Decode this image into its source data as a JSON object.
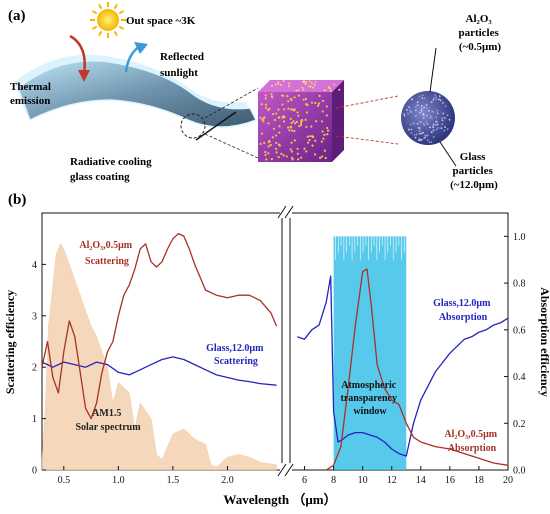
{
  "panel_a": {
    "label": "(a)",
    "out_space": "Out space ~3K",
    "thermal_emission": [
      "Thermal",
      "emission"
    ],
    "reflected_sunlight": [
      "Reflected",
      "sunlight"
    ],
    "coating": [
      "Radiative cooling",
      "glass coating"
    ],
    "al2o3": [
      "Al₂O₃",
      "particles",
      "(~0.5μm)"
    ],
    "glass": [
      "Glass",
      "particles",
      "(~12.0μm)"
    ],
    "colors": {
      "sun": "#f7c600",
      "film": "#7aa0b8",
      "cube": "#9a3aa8",
      "sphere": "#4a55a8",
      "thermal_arrow": "#c0392b",
      "reflect_arrow": "#3a9ad9"
    }
  },
  "panel_b": {
    "label": "(b)",
    "ylabel_left": "Scattering efficiency",
    "ylabel_right": "Absorption efficiency",
    "xlabel": "Wavelength （μm）",
    "annotations": {
      "al_scat": [
        "Al₂O₃,0.5μm",
        "Scattering"
      ],
      "glass_scat": [
        "Glass,12.0μm",
        "Scattering"
      ],
      "am15": [
        "AM1.5",
        "Solar spectrum"
      ],
      "atm": [
        "Atmospheric",
        "transparency",
        "window"
      ],
      "glass_abs": [
        "Glass,12.0μm",
        "Absorption"
      ],
      "al_abs": [
        "Al₂O₃,0.5μm",
        "Absorption"
      ]
    }
  },
  "chart_data": {
    "type": "line",
    "left": {
      "xlim": [
        0.3,
        2.5
      ],
      "ylim": [
        0,
        5
      ],
      "xticks": [
        "0.5",
        "1.0",
        "1.5",
        "2.0"
      ],
      "yticks": [
        "0",
        "1",
        "2",
        "3",
        "4"
      ],
      "series": [
        {
          "name": "Al2O3,0.5μm Scattering",
          "color": "#a83224",
          "x": [
            0.3,
            0.35,
            0.4,
            0.45,
            0.5,
            0.55,
            0.6,
            0.65,
            0.7,
            0.75,
            0.8,
            0.85,
            0.9,
            0.95,
            1.0,
            1.05,
            1.1,
            1.15,
            1.2,
            1.25,
            1.3,
            1.35,
            1.4,
            1.45,
            1.5,
            1.55,
            1.6,
            1.65,
            1.7,
            1.8,
            1.9,
            2.0,
            2.1,
            2.2,
            2.3,
            2.4,
            2.45
          ],
          "y": [
            2.0,
            2.5,
            1.8,
            1.5,
            2.3,
            2.9,
            2.6,
            1.9,
            1.2,
            1.0,
            1.3,
            1.9,
            2.3,
            2.5,
            3.0,
            3.4,
            3.6,
            3.9,
            4.3,
            4.4,
            4.05,
            3.95,
            4.05,
            4.3,
            4.5,
            4.6,
            4.55,
            4.3,
            4.0,
            3.5,
            3.4,
            3.35,
            3.4,
            3.4,
            3.3,
            3.05,
            2.8
          ]
        },
        {
          "name": "Glass,12.0μm Scattering",
          "color": "#2424c0",
          "x": [
            0.3,
            0.35,
            0.4,
            0.5,
            0.6,
            0.7,
            0.8,
            0.9,
            1.0,
            1.1,
            1.2,
            1.3,
            1.4,
            1.5,
            1.6,
            1.7,
            1.8,
            1.9,
            2.0,
            2.1,
            2.2,
            2.3,
            2.45
          ],
          "y": [
            2.1,
            2.05,
            2.0,
            2.1,
            2.05,
            2.0,
            2.1,
            2.05,
            1.9,
            1.85,
            1.95,
            2.05,
            2.15,
            2.2,
            2.15,
            2.05,
            1.95,
            1.85,
            1.8,
            1.75,
            1.72,
            1.68,
            1.65
          ]
        },
        {
          "name": "AM1.5 Solar spectrum",
          "color": "#f4d2b0",
          "x": [
            0.3,
            0.33,
            0.36,
            0.4,
            0.43,
            0.47,
            0.5,
            0.55,
            0.6,
            0.65,
            0.7,
            0.75,
            0.8,
            0.9,
            0.95,
            1.0,
            1.1,
            1.15,
            1.2,
            1.3,
            1.35,
            1.4,
            1.5,
            1.6,
            1.7,
            1.8,
            1.85,
            1.9,
            2.0,
            2.1,
            2.2,
            2.3,
            2.45
          ],
          "y": [
            0.2,
            1.2,
            2.8,
            3.6,
            4.2,
            4.4,
            4.3,
            4.0,
            3.7,
            3.4,
            3.1,
            2.8,
            2.6,
            2.0,
            1.3,
            1.7,
            1.5,
            0.8,
            1.3,
            1.0,
            0.3,
            0.2,
            0.7,
            0.8,
            0.6,
            0.5,
            0.1,
            0.05,
            0.25,
            0.3,
            0.25,
            0.15,
            0.1
          ]
        }
      ]
    },
    "right": {
      "xlim": [
        5,
        20
      ],
      "ylim": [
        0,
        1.1
      ],
      "xticks": [
        "6",
        "8",
        "10",
        "12",
        "14",
        "16",
        "18",
        "20"
      ],
      "yticks": [
        "0.0",
        "0.2",
        "0.4",
        "0.6",
        "0.8",
        "1.0"
      ],
      "window_band": {
        "x": [
          8,
          13
        ],
        "color": "#39bfe8"
      },
      "series": [
        {
          "name": "Glass,12.0μm Absorption",
          "color": "#2424c0",
          "x": [
            5.5,
            6.0,
            6.5,
            7.0,
            7.5,
            7.8,
            8.0,
            8.3,
            8.6,
            9.0,
            9.5,
            10.0,
            10.5,
            11.0,
            11.5,
            12.0,
            12.5,
            13.0,
            13.5,
            14.0,
            14.5,
            15.0,
            15.5,
            16.0,
            16.5,
            17.0,
            17.5,
            18.0,
            18.5,
            19.0,
            19.5,
            20.0
          ],
          "y": [
            0.57,
            0.56,
            0.6,
            0.62,
            0.72,
            0.83,
            0.25,
            0.12,
            0.13,
            0.15,
            0.16,
            0.16,
            0.15,
            0.14,
            0.12,
            0.09,
            0.07,
            0.06,
            0.2,
            0.3,
            0.36,
            0.42,
            0.46,
            0.5,
            0.53,
            0.56,
            0.57,
            0.59,
            0.6,
            0.62,
            0.63,
            0.65
          ]
        },
        {
          "name": "Al2O3,0.5μm Absorption",
          "color": "#a83224",
          "x": [
            7.5,
            8.0,
            8.5,
            9.0,
            9.5,
            10.0,
            10.3,
            10.6,
            11.0,
            11.5,
            12.0,
            12.5,
            13.0,
            13.5,
            14.0,
            15.0,
            16.0,
            17.0,
            18.0,
            19.0,
            20.0
          ],
          "y": [
            0.0,
            0.02,
            0.1,
            0.35,
            0.62,
            0.85,
            0.86,
            0.7,
            0.45,
            0.35,
            0.3,
            0.28,
            0.2,
            0.14,
            0.12,
            0.1,
            0.09,
            0.07,
            0.05,
            0.03,
            0.02
          ]
        }
      ]
    }
  }
}
